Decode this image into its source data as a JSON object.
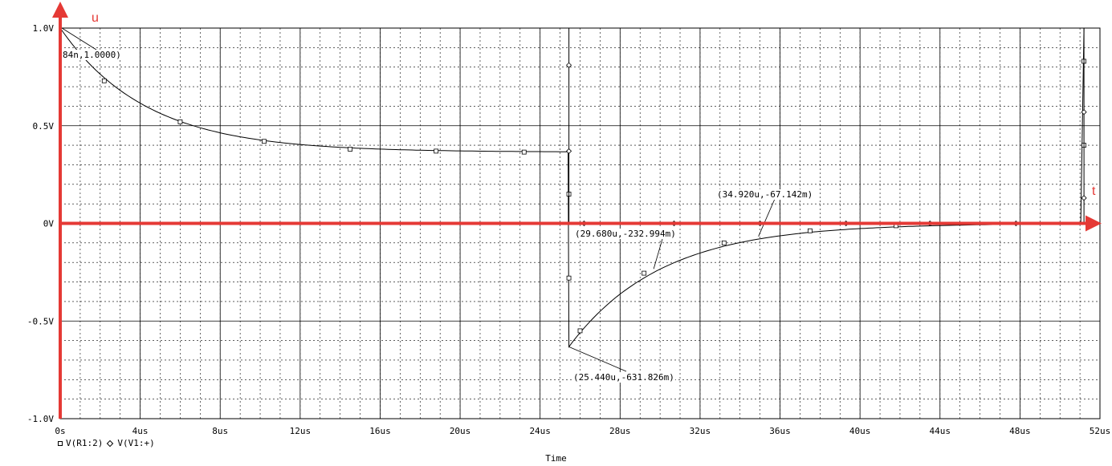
{
  "chart_data": {
    "type": "line",
    "xlabel": "Time",
    "x_unit": "us",
    "xlim": [
      0,
      52
    ],
    "ylim": [
      -1.0,
      1.0
    ],
    "grid": true,
    "x_ticks": [
      "0s",
      "4us",
      "8us",
      "12us",
      "16us",
      "20us",
      "24us",
      "28us",
      "32us",
      "36us",
      "40us",
      "44us",
      "48us",
      "52us"
    ],
    "y_ticks": [
      {
        "value": 1.0,
        "label": "1.0V"
      },
      {
        "value": 0.5,
        "label": "0.5V"
      },
      {
        "value": 0.0,
        "label": "0V"
      },
      {
        "value": -0.5,
        "label": "-0.5V"
      },
      {
        "value": -1.0,
        "label": "-1.0V"
      }
    ],
    "series": [
      {
        "name": "V(R1:2)",
        "marker": "square",
        "x": [
          0,
          2.2,
          6.0,
          10.2,
          14.5,
          18.8,
          23.2,
          25.44,
          25.44,
          26.0,
          29.2,
          33.2,
          37.5,
          41.8,
          50.5,
          51.2,
          51.2
        ],
        "y": [
          1.0,
          0.73,
          0.52,
          0.42,
          0.38,
          0.37,
          0.365,
          0.365,
          -0.632,
          -0.55,
          -0.255,
          -0.1,
          -0.038,
          -0.012,
          0.0,
          0.0,
          1.0
        ],
        "markers_x": [
          2.2,
          6.0,
          10.2,
          14.5,
          18.8,
          23.2,
          25.44,
          25.44,
          26.0,
          29.2,
          33.2,
          37.5,
          41.8,
          51.2,
          51.2
        ],
        "markers_y": [
          0.73,
          0.52,
          0.42,
          0.38,
          0.37,
          0.365,
          0.15,
          -0.28,
          -0.55,
          -0.255,
          -0.1,
          -0.038,
          -0.012,
          0.83,
          0.4
        ]
      },
      {
        "name": "V(V1:+)",
        "marker": "diamond",
        "x": [
          0,
          25.44,
          25.44,
          51.2,
          51.2
        ],
        "y": [
          1.0,
          1.0,
          0.0,
          0.0,
          1.0
        ],
        "markers_x": [
          25.44,
          25.44,
          26.2,
          30.7,
          35.0,
          39.3,
          43.5,
          47.8,
          51.2,
          51.2
        ],
        "markers_y": [
          0.81,
          0.37,
          0.0,
          0.0,
          0.0,
          0.0,
          0.0,
          0.0,
          0.57,
          0.13
        ]
      }
    ],
    "annotations": [
      {
        "text": "84n,1.0000)",
        "x": 0.084,
        "y": 1.0
      },
      {
        "text": "(34.920u,-67.142m)",
        "x": 34.92,
        "y": -0.067
      },
      {
        "text": "(29.680u,-232.994m)",
        "x": 29.68,
        "y": -0.233
      },
      {
        "text": "(25.440u,-631.826m)",
        "x": 25.44,
        "y": -0.632
      }
    ],
    "overlay_axes": {
      "color": "#e53935",
      "y_label": "u",
      "x_label": "t"
    }
  }
}
